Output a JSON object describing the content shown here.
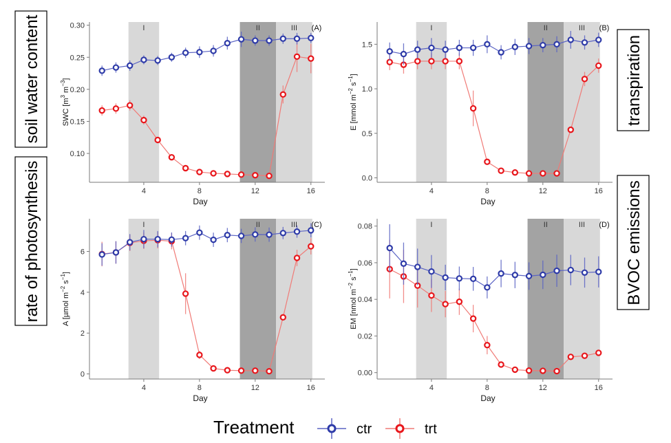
{
  "chart_data": [
    {
      "type": "line",
      "panel_tag": "(A)",
      "side_label": "soil water content",
      "side_label_position": "left",
      "xlabel": "Day",
      "ylabel": {
        "base": "SWC [m",
        "parts": [
          {
            "t": "3",
            "sup": true
          },
          {
            "t": " m",
            "sup": false
          },
          {
            "t": "−3",
            "sup": true
          },
          {
            "t": "]",
            "sup": false
          }
        ]
      },
      "xlim": [
        0.1,
        17
      ],
      "ylim": [
        0.055,
        0.305
      ],
      "xticks": [
        4,
        8,
        12,
        16
      ],
      "yticks": [
        0.1,
        0.15,
        0.2,
        0.25,
        0.3
      ],
      "ytick_labels": [
        "0.10",
        "0.15",
        "0.20",
        "0.25",
        "0.30"
      ],
      "x": [
        1,
        2,
        3,
        4,
        5,
        6,
        7,
        8,
        9,
        10,
        11,
        12,
        13,
        14,
        15,
        16
      ],
      "series": [
        {
          "name": "ctr",
          "values": [
            0.229,
            0.234,
            0.237,
            0.246,
            0.245,
            0.25,
            0.257,
            0.258,
            0.26,
            0.272,
            0.278,
            0.276,
            0.276,
            0.279,
            0.279,
            0.28
          ],
          "err": [
            0.008,
            0.008,
            0.008,
            0.007,
            0.007,
            0.007,
            0.008,
            0.009,
            0.009,
            0.01,
            0.012,
            0.008,
            0.008,
            0.008,
            0.009,
            0.008
          ]
        },
        {
          "name": "trt",
          "values": [
            0.167,
            0.17,
            0.175,
            0.152,
            0.121,
            0.094,
            0.077,
            0.071,
            0.069,
            0.068,
            0.067,
            0.066,
            0.065,
            0.192,
            0.251,
            0.248
          ],
          "err": [
            0.008,
            0.008,
            0.008,
            0.007,
            0.004,
            0.003,
            0.003,
            0.002,
            0.002,
            0.002,
            0.002,
            0.002,
            0.002,
            0.014,
            0.024,
            0.023
          ]
        }
      ]
    },
    {
      "type": "line",
      "panel_tag": "(B)",
      "side_label": "transpiration",
      "side_label_position": "right",
      "xlabel": "Day",
      "ylabel": {
        "base": "E [mmol m",
        "parts": [
          {
            "t": "−2",
            "sup": true
          },
          {
            "t": " s",
            "sup": false
          },
          {
            "t": "−1",
            "sup": true
          },
          {
            "t": "]",
            "sup": false
          }
        ]
      },
      "xlim": [
        0.1,
        17
      ],
      "ylim": [
        -0.05,
        1.75
      ],
      "xticks": [
        4,
        8,
        12,
        16
      ],
      "yticks": [
        0.0,
        0.5,
        1.0,
        1.5
      ],
      "ytick_labels": [
        "0.0",
        "0.5",
        "1.0",
        "1.5"
      ],
      "x": [
        1,
        2,
        3,
        4,
        5,
        6,
        7,
        8,
        9,
        10,
        11,
        12,
        13,
        14,
        15,
        16
      ],
      "series": [
        {
          "name": "ctr",
          "values": [
            1.42,
            1.39,
            1.44,
            1.46,
            1.44,
            1.46,
            1.46,
            1.5,
            1.41,
            1.47,
            1.48,
            1.49,
            1.5,
            1.55,
            1.52,
            1.55
          ],
          "err": [
            0.1,
            0.12,
            0.1,
            0.11,
            0.1,
            0.09,
            0.09,
            0.1,
            0.08,
            0.09,
            0.09,
            0.08,
            0.09,
            0.1,
            0.08,
            0.08
          ]
        },
        {
          "name": "trt",
          "values": [
            1.3,
            1.27,
            1.31,
            1.31,
            1.31,
            1.31,
            0.78,
            0.18,
            0.08,
            0.06,
            0.05,
            0.05,
            0.05,
            0.54,
            1.11,
            1.26
          ],
          "err": [
            0.09,
            0.1,
            0.09,
            0.09,
            0.09,
            0.09,
            0.2,
            0.02,
            0.01,
            0.01,
            0.01,
            0.01,
            0.01,
            0.02,
            0.08,
            0.08
          ]
        }
      ]
    },
    {
      "type": "line",
      "panel_tag": "(C)",
      "side_label": "rate of photosynthesis",
      "side_label_position": "left",
      "xlabel": "Day",
      "ylabel": {
        "base": "A [µmol m",
        "parts": [
          {
            "t": "−2",
            "sup": true
          },
          {
            "t": " s",
            "sup": false
          },
          {
            "t": "−1",
            "sup": true
          },
          {
            "t": "]",
            "sup": false
          }
        ]
      },
      "xlim": [
        0.1,
        17
      ],
      "ylim": [
        -0.25,
        7.6
      ],
      "xticks": [
        4,
        8,
        12,
        16
      ],
      "yticks": [
        0,
        2,
        4,
        6
      ],
      "ytick_labels": [
        "0",
        "2",
        "4",
        "6"
      ],
      "x": [
        1,
        2,
        3,
        4,
        5,
        6,
        7,
        8,
        9,
        10,
        11,
        12,
        13,
        14,
        15,
        16
      ],
      "series": [
        {
          "name": "ctr",
          "values": [
            5.85,
            5.95,
            6.45,
            6.6,
            6.6,
            6.58,
            6.65,
            6.92,
            6.57,
            6.8,
            6.76,
            6.83,
            6.82,
            6.9,
            6.97,
            7.03
          ],
          "err": [
            0.55,
            0.55,
            0.4,
            0.45,
            0.4,
            0.35,
            0.35,
            0.35,
            0.35,
            0.35,
            0.35,
            0.35,
            0.35,
            0.3,
            0.3,
            0.35
          ]
        },
        {
          "name": "trt",
          "values": [
            5.87,
            5.95,
            6.42,
            6.52,
            6.55,
            6.5,
            3.93,
            0.93,
            0.27,
            0.18,
            0.16,
            0.16,
            0.13,
            2.77,
            5.68,
            6.25
          ],
          "err": [
            0.6,
            0.55,
            0.4,
            0.4,
            0.4,
            0.4,
            1.0,
            0.2,
            0.05,
            0.03,
            0.03,
            0.03,
            0.03,
            0.1,
            0.4,
            0.4
          ]
        }
      ]
    },
    {
      "type": "line",
      "panel_tag": "(D)",
      "side_label": "BVOC emissions",
      "side_label_position": "right",
      "xlabel": "Day",
      "ylabel": {
        "base": "EM [nmol m",
        "parts": [
          {
            "t": "−2",
            "sup": true
          },
          {
            "t": " s",
            "sup": false
          },
          {
            "t": "−1",
            "sup": true
          },
          {
            "t": "]",
            "sup": false
          }
        ]
      },
      "xlim": [
        0.1,
        17
      ],
      "ylim": [
        -0.0035,
        0.084
      ],
      "xticks": [
        4,
        8,
        12,
        16
      ],
      "yticks": [
        0.0,
        0.02,
        0.04,
        0.06,
        0.08
      ],
      "ytick_labels": [
        "0.00",
        "0.02",
        "0.04",
        "0.06",
        "0.08"
      ],
      "x": [
        1,
        2,
        3,
        4,
        5,
        6,
        7,
        8,
        9,
        10,
        11,
        12,
        13,
        14,
        15,
        16
      ],
      "series": [
        {
          "name": "ctr",
          "values": [
            0.068,
            0.0595,
            0.0577,
            0.0552,
            0.0519,
            0.0514,
            0.0512,
            0.0465,
            0.0541,
            0.0533,
            0.0527,
            0.0534,
            0.0556,
            0.056,
            0.0546,
            0.055
          ],
          "err": [
            0.013,
            0.0115,
            0.01,
            0.009,
            0.007,
            0.0065,
            0.0065,
            0.006,
            0.0075,
            0.0072,
            0.0075,
            0.0078,
            0.0088,
            0.0083,
            0.0082,
            0.0085
          ]
        },
        {
          "name": "trt",
          "values": [
            0.0565,
            0.0525,
            0.0475,
            0.0421,
            0.0374,
            0.0387,
            0.0295,
            0.015,
            0.0044,
            0.0016,
            0.0011,
            0.001,
            0.0008,
            0.0086,
            0.0092,
            0.0108
          ],
          "err": [
            0.016,
            0.0145,
            0.012,
            0.009,
            0.0072,
            0.0072,
            0.0075,
            0.005,
            0.001,
            0.0005,
            0.0005,
            0.0005,
            0.0005,
            0.0015,
            0.001,
            0.001
          ]
        }
      ]
    }
  ],
  "bands": [
    {
      "label": "I",
      "from": 2.9,
      "to": 5.1,
      "shade": "light"
    },
    {
      "label": "II",
      "from": 10.9,
      "to": 13.5,
      "shade": "dark"
    },
    {
      "label": "III",
      "from": 13.5,
      "to": 16.1,
      "shade": "light"
    }
  ],
  "legend": {
    "title": "Treatment",
    "position": "bottom",
    "items": [
      {
        "name": "ctr",
        "color": "#2e3ba8"
      },
      {
        "name": "trt",
        "color": "#e8161b"
      }
    ]
  },
  "colors": {
    "ctr": "#2e3ba8",
    "ctr_line": "#5a63c4",
    "trt": "#e8161b",
    "trt_line": "#f07a76",
    "band_light": "#d8d8d8",
    "band_dark": "#a3a3a3",
    "axis": "#7a7a7a"
  }
}
